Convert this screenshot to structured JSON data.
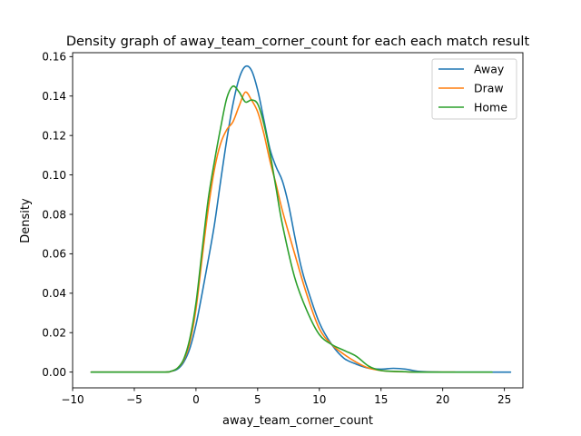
{
  "chart_data": {
    "type": "line",
    "title": "Density graph of away_team_corner_count for each each match result",
    "xlabel": "away_team_corner_count",
    "ylabel": "Density",
    "xlim": [
      -10.0,
      26.5
    ],
    "ylim": [
      -0.008,
      0.162
    ],
    "xticks": [
      -10,
      -5,
      0,
      5,
      10,
      15,
      20,
      25
    ],
    "xtick_labels": [
      "−10",
      "−5",
      "0",
      "5",
      "10",
      "15",
      "20",
      "25"
    ],
    "yticks": [
      0.0,
      0.02,
      0.04,
      0.06,
      0.08,
      0.1,
      0.12,
      0.14,
      0.16
    ],
    "ytick_labels": [
      "0.00",
      "0.02",
      "0.04",
      "0.06",
      "0.08",
      "0.10",
      "0.12",
      "0.14",
      "0.16"
    ],
    "grid": false,
    "legend_position": "top-right",
    "series": [
      {
        "name": "Away",
        "color": "#1f77b4",
        "points": [
          [
            -8.5,
            0.0
          ],
          [
            -5,
            0.0
          ],
          [
            -2.5,
            0.0
          ],
          [
            -2,
            0.0004
          ],
          [
            -1.5,
            0.0015
          ],
          [
            -1,
            0.005
          ],
          [
            -0.5,
            0.012
          ],
          [
            0,
            0.024
          ],
          [
            0.5,
            0.04
          ],
          [
            1,
            0.057
          ],
          [
            1.5,
            0.075
          ],
          [
            2,
            0.097
          ],
          [
            2.5,
            0.118
          ],
          [
            3,
            0.136
          ],
          [
            3.5,
            0.149
          ],
          [
            4,
            0.155
          ],
          [
            4.5,
            0.153
          ],
          [
            5,
            0.143
          ],
          [
            5.5,
            0.128
          ],
          [
            6,
            0.113
          ],
          [
            6.5,
            0.104
          ],
          [
            7,
            0.097
          ],
          [
            7.5,
            0.085
          ],
          [
            8,
            0.069
          ],
          [
            8.5,
            0.054
          ],
          [
            9,
            0.043
          ],
          [
            10,
            0.025
          ],
          [
            11,
            0.014
          ],
          [
            12,
            0.007
          ],
          [
            13,
            0.004
          ],
          [
            14,
            0.002
          ],
          [
            15,
            0.0015
          ],
          [
            16,
            0.0019
          ],
          [
            17,
            0.0015
          ],
          [
            18,
            0.0004
          ],
          [
            20,
            0.0
          ],
          [
            22,
            0.0
          ],
          [
            25.5,
            0.0
          ]
        ]
      },
      {
        "name": "Draw",
        "color": "#ff7f0e",
        "points": [
          [
            -8.5,
            0.0
          ],
          [
            -5,
            0.0
          ],
          [
            -2.5,
            0.0
          ],
          [
            -2,
            0.0004
          ],
          [
            -1.5,
            0.002
          ],
          [
            -1,
            0.006
          ],
          [
            -0.5,
            0.015
          ],
          [
            0,
            0.032
          ],
          [
            0.5,
            0.058
          ],
          [
            1,
            0.083
          ],
          [
            1.5,
            0.103
          ],
          [
            2,
            0.116
          ],
          [
            2.5,
            0.123
          ],
          [
            3,
            0.127
          ],
          [
            3.5,
            0.135
          ],
          [
            4,
            0.142
          ],
          [
            4.5,
            0.138
          ],
          [
            5,
            0.132
          ],
          [
            5.5,
            0.121
          ],
          [
            6,
            0.107
          ],
          [
            6.5,
            0.095
          ],
          [
            7,
            0.082
          ],
          [
            8,
            0.06
          ],
          [
            9,
            0.039
          ],
          [
            10,
            0.022
          ],
          [
            11,
            0.014
          ],
          [
            12,
            0.009
          ],
          [
            13,
            0.005
          ],
          [
            14,
            0.002
          ],
          [
            15,
            0.0008
          ],
          [
            16,
            0.0003
          ],
          [
            18,
            0.0
          ],
          [
            21,
            0.0
          ]
        ]
      },
      {
        "name": "Home",
        "color": "#2ca02c",
        "points": [
          [
            -8.5,
            0.0
          ],
          [
            -5,
            0.0
          ],
          [
            -2.5,
            0.0
          ],
          [
            -2,
            0.0005
          ],
          [
            -1.5,
            0.002
          ],
          [
            -1,
            0.0065
          ],
          [
            -0.5,
            0.017
          ],
          [
            0,
            0.035
          ],
          [
            0.5,
            0.062
          ],
          [
            1,
            0.088
          ],
          [
            1.5,
            0.107
          ],
          [
            2,
            0.124
          ],
          [
            2.5,
            0.139
          ],
          [
            3,
            0.145
          ],
          [
            3.5,
            0.142
          ],
          [
            4,
            0.137
          ],
          [
            4.5,
            0.138
          ],
          [
            5,
            0.136
          ],
          [
            5.5,
            0.126
          ],
          [
            6,
            0.111
          ],
          [
            6.5,
            0.093
          ],
          [
            7,
            0.075
          ],
          [
            8,
            0.048
          ],
          [
            9,
            0.031
          ],
          [
            10,
            0.019
          ],
          [
            11,
            0.014
          ],
          [
            12,
            0.011
          ],
          [
            13,
            0.008
          ],
          [
            14,
            0.003
          ],
          [
            15,
            0.0008
          ],
          [
            16,
            0.0004
          ],
          [
            17,
            0.0002
          ],
          [
            18,
            0.0
          ],
          [
            24,
            0.0
          ]
        ]
      }
    ]
  }
}
